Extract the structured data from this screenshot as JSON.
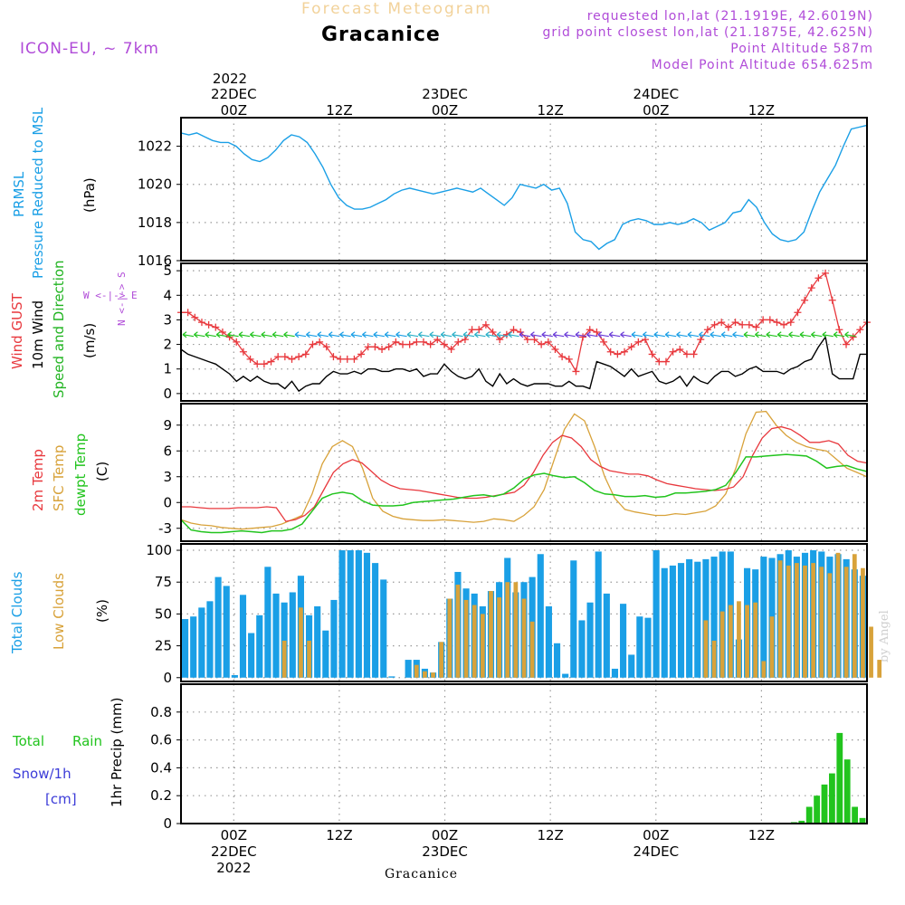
{
  "header": {
    "suptitle": "Forecast Meteogram",
    "model": "ICON-EU, ~ 7km",
    "location": "Gracanice",
    "requested": "requested lon,lat (21.1919E, 42.6019N)",
    "gridpoint": "grid point closest lon,lat (21.1875E, 42.625N)",
    "point_alt": "Point Altitude 587m",
    "model_alt": "Model Point Altitude 654.625m",
    "credit": "by Angel",
    "footer_location": "Gracanice"
  },
  "time_axis": {
    "top_year": "2022",
    "top_labels": [
      {
        "lines": [
          "22DEC",
          "00Z"
        ],
        "step": 6
      },
      {
        "lines": [
          "12Z"
        ],
        "step": 18
      },
      {
        "lines": [
          "23DEC",
          "00Z"
        ],
        "step": 30
      },
      {
        "lines": [
          "12Z"
        ],
        "step": 42
      },
      {
        "lines": [
          "24DEC",
          "00Z"
        ],
        "step": 54
      },
      {
        "lines": [
          "12Z"
        ],
        "step": 66
      }
    ],
    "bottom_labels": [
      {
        "lines": [
          "00Z",
          "22DEC",
          "2022"
        ],
        "step": 6
      },
      {
        "lines": [
          "12Z"
        ],
        "step": 18
      },
      {
        "lines": [
          "00Z",
          "23DEC"
        ],
        "step": 30
      },
      {
        "lines": [
          "12Z"
        ],
        "step": 42
      },
      {
        "lines": [
          "00Z",
          "24DEC"
        ],
        "step": 54
      },
      {
        "lines": [
          "12Z"
        ],
        "step": 66
      }
    ]
  },
  "panels": {
    "pressure": {
      "label1": "PRMSL",
      "label2": "Pressure Reduced to MSL",
      "unit": "(hPa)",
      "color": "#1a9fe6"
    },
    "wind": {
      "gust_label": "Wind GUST",
      "wind_label": "10m Wind",
      "dir_label": "Speed and Direction",
      "unit": "(m/s)",
      "compass_ns": "N  <-|->  S",
      "compass_we": "W <-|-> E",
      "gust_color": "#e8383d",
      "wind_color": "#000000",
      "dir_color": "#22b422"
    },
    "temp": {
      "t2m_label": "2m Temp",
      "sfc_label": "SFC Temp",
      "dew_label": "dewpt Temp",
      "unit": "(C)",
      "t2m_color": "#e8383d",
      "sfc_color": "#d8a23a",
      "dew_color": "#22c41e"
    },
    "clouds": {
      "total_label": "Total Clouds",
      "low_label": "Low Clouds",
      "unit": "(%)",
      "total_color": "#1a9fe6",
      "low_color": "#d8a23a"
    },
    "precip": {
      "rain_label1": "Total",
      "rain_label2": "Rain",
      "snow_label": "Snow/1h",
      "snow_unit": "[cm]",
      "axis_label": "1hr Precip (mm)",
      "rain_color": "#22c41e",
      "snow_color": "#3b3bd8"
    }
  },
  "chart_data": [
    {
      "type": "line",
      "title": "PRMSL",
      "ylabel": "(hPa)",
      "ylim": [
        1016,
        1023.5
      ],
      "yticks": [
        1016,
        1018,
        1020,
        1022
      ],
      "x_hours_from_start": [
        0,
        1,
        2,
        3,
        4,
        5,
        6,
        7,
        8,
        9,
        10,
        11,
        12,
        13,
        14,
        15,
        16,
        17,
        18,
        19,
        20,
        21,
        22,
        23,
        24,
        25,
        26,
        27,
        28,
        29,
        30,
        31,
        32,
        33,
        34,
        35,
        36,
        37,
        38,
        39,
        40,
        41,
        42,
        43,
        44,
        45,
        46,
        47,
        48,
        49,
        50,
        51,
        52,
        53,
        54,
        55,
        56,
        57,
        58,
        59,
        60,
        61,
        62,
        63,
        64,
        65,
        66,
        67,
        68,
        69,
        70,
        71,
        72,
        73,
        74,
        75,
        76,
        77
      ],
      "series": [
        {
          "name": "PRMSL",
          "values": [
            1022.7,
            1022.6,
            1022.7,
            1022.5,
            1022.3,
            1022.2,
            1022.2,
            1022.0,
            1021.6,
            1021.3,
            1021.2,
            1021.4,
            1021.8,
            1022.3,
            1022.6,
            1022.5,
            1022.2,
            1021.6,
            1020.9,
            1020.0,
            1019.3,
            1018.9,
            1018.7,
            1018.7,
            1018.8,
            1019.0,
            1019.2,
            1019.5,
            1019.7,
            1019.8,
            1019.7,
            1019.6,
            1019.5,
            1019.6,
            1019.7,
            1019.8,
            1019.7,
            1019.6,
            1019.8,
            1019.5,
            1019.2,
            1018.9,
            1019.3,
            1020.0,
            1019.9,
            1019.8,
            1020.0,
            1019.7,
            1019.8,
            1019.0,
            1017.5,
            1017.1,
            1017.0,
            1016.6,
            1016.9,
            1017.1,
            1017.9,
            1018.1,
            1018.2,
            1018.1,
            1017.9,
            1017.9,
            1018.0,
            1017.9,
            1018.0,
            1018.2,
            1018.0,
            1017.6,
            1017.8,
            1018.0,
            1018.5,
            1018.6,
            1019.2,
            1018.8,
            1018.0,
            1017.4,
            1017.1,
            1017.0,
            1017.1,
            1017.5,
            1018.6,
            1019.6,
            1020.3,
            1021.0,
            1022.0,
            1022.9,
            1023.0,
            1023.1
          ]
        }
      ]
    },
    {
      "type": "line",
      "title": "Wind GUST / 10m Wind",
      "ylabel": "(m/s)",
      "ylim": [
        -0.3,
        5.3
      ],
      "yticks": [
        0,
        1,
        2,
        3,
        4,
        5
      ],
      "series": [
        {
          "name": "Wind GUST",
          "values": [
            3.3,
            3.3,
            3.1,
            2.9,
            2.8,
            2.7,
            2.5,
            2.3,
            2.1,
            1.7,
            1.4,
            1.2,
            1.2,
            1.3,
            1.5,
            1.5,
            1.4,
            1.5,
            1.6,
            2.0,
            2.1,
            1.9,
            1.5,
            1.4,
            1.4,
            1.4,
            1.6,
            1.9,
            1.9,
            1.8,
            1.9,
            2.1,
            2.0,
            2.0,
            2.1,
            2.1,
            2.0,
            2.2,
            2.0,
            1.8,
            2.1,
            2.2,
            2.6,
            2.6,
            2.8,
            2.5,
            2.2,
            2.4,
            2.6,
            2.5,
            2.2,
            2.2,
            2.0,
            2.1,
            1.8,
            1.5,
            1.4,
            0.9,
            2.3,
            2.6,
            2.5,
            2.1,
            1.7,
            1.6,
            1.7,
            1.9,
            2.1,
            2.2,
            1.6,
            1.3,
            1.3,
            1.7,
            1.8,
            1.6,
            1.6,
            2.2,
            2.6,
            2.8,
            2.9,
            2.7,
            2.9,
            2.8,
            2.8,
            2.7,
            3.0,
            3.0,
            2.9,
            2.8,
            2.9,
            3.3,
            3.8,
            4.3,
            4.7,
            4.9,
            3.8,
            2.6,
            2.0,
            2.3,
            2.6,
            2.9
          ]
        },
        {
          "name": "10m Wind",
          "values": [
            1.8,
            1.6,
            1.5,
            1.4,
            1.3,
            1.2,
            1.0,
            0.8,
            0.5,
            0.7,
            0.5,
            0.7,
            0.5,
            0.4,
            0.4,
            0.2,
            0.5,
            0.1,
            0.3,
            0.4,
            0.4,
            0.7,
            0.9,
            0.8,
            0.8,
            0.9,
            0.8,
            1.0,
            1.0,
            0.9,
            0.9,
            1.0,
            1.0,
            0.9,
            1.0,
            0.7,
            0.8,
            0.8,
            1.2,
            0.9,
            0.7,
            0.6,
            0.7,
            1.0,
            0.5,
            0.3,
            0.8,
            0.4,
            0.6,
            0.4,
            0.3,
            0.4,
            0.4,
            0.4,
            0.3,
            0.3,
            0.5,
            0.3,
            0.3,
            0.2,
            1.3,
            1.2,
            1.1,
            0.9,
            0.7,
            1.0,
            0.7,
            0.8,
            0.9,
            0.5,
            0.4,
            0.5,
            0.7,
            0.3,
            0.7,
            0.5,
            0.4,
            0.7,
            0.9,
            0.9,
            0.7,
            0.8,
            1.0,
            1.1,
            0.9,
            0.9,
            0.9,
            0.8,
            1.0,
            1.1,
            1.3,
            1.4,
            1.9,
            2.3,
            0.8,
            0.6,
            0.6,
            0.6,
            1.6,
            1.6
          ]
        }
      ]
    },
    {
      "type": "line",
      "title": "Temperatures",
      "ylabel": "(C)",
      "ylim": [
        -4.5,
        11.5
      ],
      "yticks": [
        -3,
        0,
        3,
        6,
        9
      ],
      "series": [
        {
          "name": "2m Temp",
          "values": [
            -0.5,
            -0.5,
            -0.6,
            -0.7,
            -0.7,
            -0.7,
            -0.6,
            -0.6,
            -0.6,
            -0.5,
            -0.6,
            -2.2,
            -2.0,
            -1.5,
            -0.5,
            1.5,
            3.5,
            4.5,
            5.0,
            4.6,
            3.6,
            2.6,
            2.0,
            1.6,
            1.5,
            1.4,
            1.2,
            1.0,
            0.8,
            0.6,
            0.5,
            0.5,
            0.6,
            0.8,
            1.0,
            1.2,
            2.0,
            3.5,
            5.5,
            7.0,
            7.8,
            7.5,
            6.5,
            5.0,
            4.2,
            3.7,
            3.5,
            3.3,
            3.3,
            3.1,
            2.6,
            2.2,
            2.0,
            1.8,
            1.6,
            1.5,
            1.4,
            1.5,
            1.8,
            3.0,
            5.5,
            7.5,
            8.6,
            8.8,
            8.5,
            7.8,
            7.0,
            7.0,
            7.2,
            6.8,
            5.5,
            4.8,
            4.6
          ]
        },
        {
          "name": "SFC Temp",
          "values": [
            -2.0,
            -2.4,
            -2.6,
            -2.7,
            -2.9,
            -3.0,
            -3.1,
            -3.0,
            -2.9,
            -2.8,
            -2.5,
            -2.0,
            -1.5,
            1.0,
            4.5,
            6.5,
            7.2,
            6.5,
            4.0,
            0.5,
            -1.0,
            -1.6,
            -1.9,
            -2.0,
            -2.1,
            -2.1,
            -2.0,
            -2.1,
            -2.2,
            -2.3,
            -2.2,
            -1.9,
            -2.0,
            -2.2,
            -1.5,
            -0.5,
            1.5,
            5.0,
            8.5,
            10.3,
            9.5,
            6.5,
            3.0,
            0.5,
            -0.8,
            -1.1,
            -1.3,
            -1.5,
            -1.5,
            -1.3,
            -1.4,
            -1.2,
            -1.0,
            -0.4,
            1.0,
            4.0,
            8.0,
            10.5,
            10.6,
            9.0,
            7.8,
            7.0,
            6.5,
            6.2,
            6.0,
            5.0,
            4.0,
            3.5,
            3.0
          ]
        },
        {
          "name": "dewpt Temp",
          "values": [
            -2.0,
            -3.2,
            -3.4,
            -3.5,
            -3.5,
            -3.4,
            -3.3,
            -3.4,
            -3.5,
            -3.3,
            -3.3,
            -3.1,
            -2.5,
            -1.0,
            0.5,
            1.0,
            1.2,
            1.0,
            0.2,
            -0.3,
            -0.4,
            -0.4,
            -0.3,
            0.0,
            0.1,
            0.2,
            0.3,
            0.4,
            0.6,
            0.8,
            0.9,
            0.7,
            1.0,
            1.7,
            2.7,
            3.2,
            3.4,
            3.1,
            2.9,
            3.0,
            2.3,
            1.4,
            1.0,
            0.9,
            0.7,
            0.7,
            0.8,
            0.6,
            0.7,
            1.1,
            1.1,
            1.2,
            1.3,
            1.5,
            2.0,
            3.5,
            5.3,
            5.3,
            5.4,
            5.5,
            5.6,
            5.5,
            5.4,
            4.8,
            4.0,
            4.2,
            4.3,
            3.9,
            3.6
          ]
        }
      ]
    },
    {
      "type": "bar",
      "title": "Clouds",
      "ylabel": "(%)",
      "ylim": [
        -3,
        105
      ],
      "yticks": [
        0,
        25,
        50,
        75,
        100
      ],
      "series": [
        {
          "name": "Total Clouds",
          "values": [
            46,
            48,
            55,
            60,
            79,
            72,
            2,
            65,
            35,
            49,
            87,
            66,
            59,
            67,
            80,
            49,
            56,
            37,
            61,
            100,
            100,
            100,
            98,
            90,
            77,
            1,
            0,
            14,
            14,
            7,
            4,
            28,
            62,
            83,
            70,
            66,
            56,
            68,
            75,
            94,
            67,
            75,
            79,
            97,
            56,
            27,
            3,
            92,
            45,
            59,
            99,
            66,
            7,
            58,
            18,
            48,
            47,
            100,
            86,
            88,
            90,
            93,
            91,
            93,
            95,
            99,
            99,
            30,
            86,
            85,
            95,
            94,
            97,
            100,
            95,
            98,
            100,
            99,
            95,
            97,
            93,
            85,
            80
          ]
        },
        {
          "name": "Low Clouds",
          "values": [
            0,
            0,
            0,
            0,
            0,
            0,
            0,
            0,
            0,
            0,
            0,
            0,
            29,
            0,
            55,
            29,
            0,
            0,
            0,
            0,
            0,
            0,
            0,
            0,
            0,
            0,
            0,
            0,
            10,
            5,
            4,
            28,
            62,
            73,
            61,
            57,
            50,
            68,
            63,
            75,
            75,
            62,
            44,
            0,
            0,
            0,
            0,
            0,
            0,
            0,
            0,
            0,
            0,
            0,
            0,
            0,
            0,
            0,
            0,
            0,
            0,
            0,
            0,
            45,
            29,
            52,
            57,
            60,
            57,
            59,
            13,
            48,
            92,
            88,
            90,
            88,
            90,
            87,
            82,
            98,
            87,
            97,
            86,
            40,
            14
          ]
        }
      ]
    },
    {
      "type": "bar",
      "title": "1hr Precip (mm)",
      "ylabel": "1hr Precip (mm)",
      "ylim": [
        0,
        1.0
      ],
      "yticks": [
        0,
        0.2,
        0.4,
        0.6,
        0.8
      ],
      "series": [
        {
          "name": "Total Rain",
          "values": [
            0.01,
            0.02,
            0.12,
            0.2,
            0.28,
            0.36,
            0.65,
            0.46,
            0.12,
            0.04
          ]
        }
      ]
    }
  ]
}
